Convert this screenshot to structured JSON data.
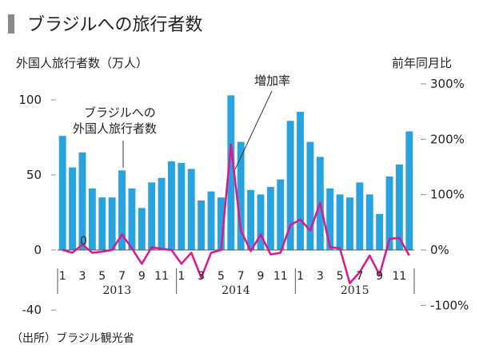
{
  "title": "ブラジルへの旅行者数",
  "source": "（出所）ブラジル観光省",
  "colors": {
    "bar": "#29a3e0",
    "line": "#e0158a",
    "title_marker": "#888888",
    "text": "#222222"
  },
  "chart_data": {
    "type": "bar",
    "left_axis_label": "外国人旅行者数（万人）",
    "right_axis_label": "前年同月比",
    "left_ticks": [
      "100",
      "50",
      "0",
      "-40"
    ],
    "left_tick_values": [
      100,
      50,
      0,
      -40
    ],
    "right_ticks": [
      "300%",
      "200%",
      "100%",
      "0%",
      "-100%"
    ],
    "right_tick_values": [
      300,
      200,
      100,
      0,
      -100
    ],
    "ylim_left": [
      -40,
      100
    ],
    "ylim_right": [
      -100,
      300
    ],
    "month_labels": [
      "1",
      "3",
      "5",
      "7",
      "9",
      "11",
      "1",
      "3",
      "5",
      "7",
      "9",
      "11",
      "1",
      "3",
      "5",
      "7",
      "9",
      "11"
    ],
    "year_labels": [
      "2013",
      "2014",
      "2015"
    ],
    "series": [
      {
        "name": "ブラジルへの外国人旅行者数",
        "type": "bar",
        "axis": "left",
        "values": [
          76,
          55,
          65,
          41,
          35,
          35,
          53,
          41,
          28,
          45,
          48,
          59,
          58,
          54,
          33,
          39,
          35,
          103,
          72,
          40,
          37,
          42,
          47,
          86,
          92,
          72,
          62,
          41,
          37,
          35,
          45,
          37,
          24,
          49,
          57,
          79
        ]
      },
      {
        "name": "増加率",
        "type": "line",
        "axis": "right",
        "values": [
          0,
          -5,
          10,
          -5,
          -3,
          0,
          28,
          3,
          -25,
          5,
          2,
          0,
          -25,
          -5,
          -50,
          -5,
          0,
          190,
          35,
          -2,
          28,
          -8,
          -5,
          45,
          55,
          35,
          85,
          5,
          3,
          -60,
          -40,
          -10,
          -45,
          20,
          22,
          -10
        ]
      }
    ],
    "annotations": [
      "増加率",
      "ブラジルへの\n外国人旅行者数",
      "0"
    ]
  }
}
